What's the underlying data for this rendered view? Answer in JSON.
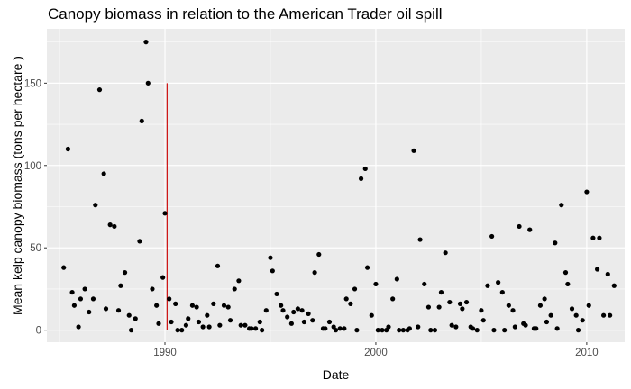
{
  "chart_data": {
    "type": "scatter",
    "title": "Canopy biomass in relation to the American Trader oil spill",
    "xlabel": "Date",
    "ylabel": "Mean kelp canopy biomass (tons per hectare )",
    "xlim": [
      1984.4,
      2011.8
    ],
    "ylim": [
      -7.3,
      183
    ],
    "x_major_ticks": [
      1990,
      2000,
      2010
    ],
    "x_minor_ticks": [
      1985,
      1995,
      2005
    ],
    "y_major_ticks": [
      0,
      50,
      100,
      150
    ],
    "y_minor_ticks": [
      25,
      75,
      125,
      175
    ],
    "x_tick_labels": [
      "1990",
      "2000",
      "2010"
    ],
    "y_tick_labels": [
      "0",
      "50",
      "100",
      "150"
    ],
    "grid": true,
    "legend": "none",
    "colors": {
      "panel": "#ebebeb",
      "grid": "#ffffff",
      "point": "#000000",
      "event_line": "#cc0000",
      "tick_text": "#4d4d4d"
    },
    "event_line": {
      "x": 1990.1,
      "y0": 0,
      "y1": 150
    },
    "points": [
      [
        1985.2,
        38
      ],
      [
        1985.4,
        110
      ],
      [
        1985.6,
        23
      ],
      [
        1985.7,
        15
      ],
      [
        1985.9,
        2
      ],
      [
        1986.0,
        19
      ],
      [
        1986.2,
        25
      ],
      [
        1986.4,
        11
      ],
      [
        1986.6,
        19
      ],
      [
        1986.7,
        76
      ],
      [
        1986.9,
        146
      ],
      [
        1987.1,
        95
      ],
      [
        1987.2,
        13
      ],
      [
        1987.4,
        64
      ],
      [
        1987.6,
        63
      ],
      [
        1987.8,
        12
      ],
      [
        1987.9,
        27
      ],
      [
        1988.1,
        35
      ],
      [
        1988.3,
        9
      ],
      [
        1988.4,
        0
      ],
      [
        1988.6,
        7
      ],
      [
        1988.8,
        54
      ],
      [
        1988.9,
        127
      ],
      [
        1989.1,
        175
      ],
      [
        1989.2,
        150
      ],
      [
        1989.4,
        25
      ],
      [
        1989.6,
        15
      ],
      [
        1989.7,
        4
      ],
      [
        1989.9,
        32
      ],
      [
        1990.0,
        71
      ],
      [
        1990.2,
        19
      ],
      [
        1990.3,
        5
      ],
      [
        1990.5,
        16
      ],
      [
        1990.6,
        0
      ],
      [
        1990.8,
        0
      ],
      [
        1991.0,
        3
      ],
      [
        1991.1,
        7
      ],
      [
        1991.3,
        15
      ],
      [
        1991.5,
        14
      ],
      [
        1991.6,
        5
      ],
      [
        1991.8,
        2
      ],
      [
        1992.0,
        9
      ],
      [
        1992.1,
        2
      ],
      [
        1992.3,
        16
      ],
      [
        1992.5,
        39
      ],
      [
        1992.6,
        3
      ],
      [
        1992.8,
        15
      ],
      [
        1993.0,
        14
      ],
      [
        1993.1,
        6
      ],
      [
        1993.3,
        25
      ],
      [
        1993.5,
        30
      ],
      [
        1993.6,
        3
      ],
      [
        1993.8,
        3
      ],
      [
        1994.0,
        1
      ],
      [
        1994.1,
        1
      ],
      [
        1994.3,
        1
      ],
      [
        1994.5,
        5
      ],
      [
        1994.6,
        0
      ],
      [
        1994.8,
        12
      ],
      [
        1995.0,
        44
      ],
      [
        1995.1,
        36
      ],
      [
        1995.3,
        22
      ],
      [
        1995.5,
        15
      ],
      [
        1995.6,
        12
      ],
      [
        1995.8,
        8
      ],
      [
        1996.0,
        4
      ],
      [
        1996.1,
        11
      ],
      [
        1996.3,
        13
      ],
      [
        1996.5,
        12
      ],
      [
        1996.6,
        5
      ],
      [
        1996.8,
        10
      ],
      [
        1997.0,
        6
      ],
      [
        1997.1,
        35
      ],
      [
        1997.3,
        46
      ],
      [
        1997.5,
        1
      ],
      [
        1997.6,
        1
      ],
      [
        1997.8,
        5
      ],
      [
        1998.0,
        2
      ],
      [
        1998.1,
        0
      ],
      [
        1998.3,
        1
      ],
      [
        1998.5,
        1
      ],
      [
        1998.6,
        19
      ],
      [
        1998.8,
        16
      ],
      [
        1999.0,
        25
      ],
      [
        1999.1,
        0
      ],
      [
        1999.3,
        92
      ],
      [
        1999.5,
        98
      ],
      [
        1999.6,
        38
      ],
      [
        1999.8,
        9
      ],
      [
        2000.0,
        28
      ],
      [
        2000.1,
        0
      ],
      [
        2000.3,
        0
      ],
      [
        2000.5,
        0
      ],
      [
        2000.6,
        2
      ],
      [
        2000.8,
        19
      ],
      [
        2001.0,
        31
      ],
      [
        2001.1,
        0
      ],
      [
        2001.3,
        0
      ],
      [
        2001.5,
        0
      ],
      [
        2001.6,
        1
      ],
      [
        2001.8,
        109
      ],
      [
        2002.0,
        2
      ],
      [
        2002.1,
        55
      ],
      [
        2002.3,
        28
      ],
      [
        2002.5,
        14
      ],
      [
        2002.6,
        0
      ],
      [
        2002.8,
        0
      ],
      [
        2003.0,
        14
      ],
      [
        2003.1,
        23
      ],
      [
        2003.3,
        47
      ],
      [
        2003.5,
        17
      ],
      [
        2003.6,
        3
      ],
      [
        2003.8,
        2
      ],
      [
        2004.0,
        16
      ],
      [
        2004.1,
        13
      ],
      [
        2004.3,
        17
      ],
      [
        2004.5,
        2
      ],
      [
        2004.6,
        1
      ],
      [
        2004.8,
        0
      ],
      [
        2005.0,
        12
      ],
      [
        2005.1,
        6
      ],
      [
        2005.3,
        27
      ],
      [
        2005.5,
        57
      ],
      [
        2005.6,
        0
      ],
      [
        2005.8,
        29
      ],
      [
        2006.0,
        23
      ],
      [
        2006.1,
        0
      ],
      [
        2006.3,
        15
      ],
      [
        2006.5,
        12
      ],
      [
        2006.6,
        2
      ],
      [
        2006.8,
        63
      ],
      [
        2007.0,
        4
      ],
      [
        2007.1,
        3
      ],
      [
        2007.3,
        61
      ],
      [
        2007.5,
        1
      ],
      [
        2007.6,
        1
      ],
      [
        2007.8,
        15
      ],
      [
        2008.0,
        19
      ],
      [
        2008.1,
        5
      ],
      [
        2008.3,
        9
      ],
      [
        2008.5,
        53
      ],
      [
        2008.6,
        1
      ],
      [
        2008.8,
        76
      ],
      [
        2009.0,
        35
      ],
      [
        2009.1,
        28
      ],
      [
        2009.3,
        13
      ],
      [
        2009.5,
        9
      ],
      [
        2009.6,
        0
      ],
      [
        2009.8,
        6
      ],
      [
        2010.0,
        84
      ],
      [
        2010.1,
        15
      ],
      [
        2010.3,
        56
      ],
      [
        2010.5,
        37
      ],
      [
        2010.6,
        56
      ],
      [
        2010.8,
        9
      ],
      [
        2011.0,
        34
      ],
      [
        2011.1,
        9
      ],
      [
        2011.3,
        27
      ]
    ]
  }
}
